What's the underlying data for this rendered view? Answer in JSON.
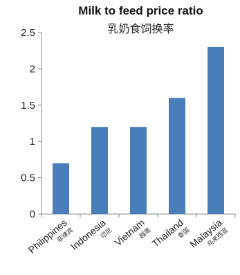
{
  "chart_data": {
    "type": "bar",
    "title": "Milk to feed price ratio",
    "subtitle": "乳奶食饲换率",
    "categories": [
      {
        "name": "Philippines",
        "sub": "菲律宾"
      },
      {
        "name": "Indonesia",
        "sub": "印尼"
      },
      {
        "name": "Vietnam",
        "sub": "越南"
      },
      {
        "name": "Thailand",
        "sub": "泰国"
      },
      {
        "name": "Malaysia",
        "sub": "马来西亚"
      }
    ],
    "values": [
      0.7,
      1.2,
      1.2,
      1.6,
      2.3
    ],
    "ylim": [
      0,
      2.5
    ],
    "yticks": [
      "0",
      "0.5",
      "1",
      "1.5",
      "2",
      "2.5"
    ],
    "grid": false,
    "legend": "none",
    "bar_color": "#4a7ebb",
    "axis_color": "#888888"
  }
}
